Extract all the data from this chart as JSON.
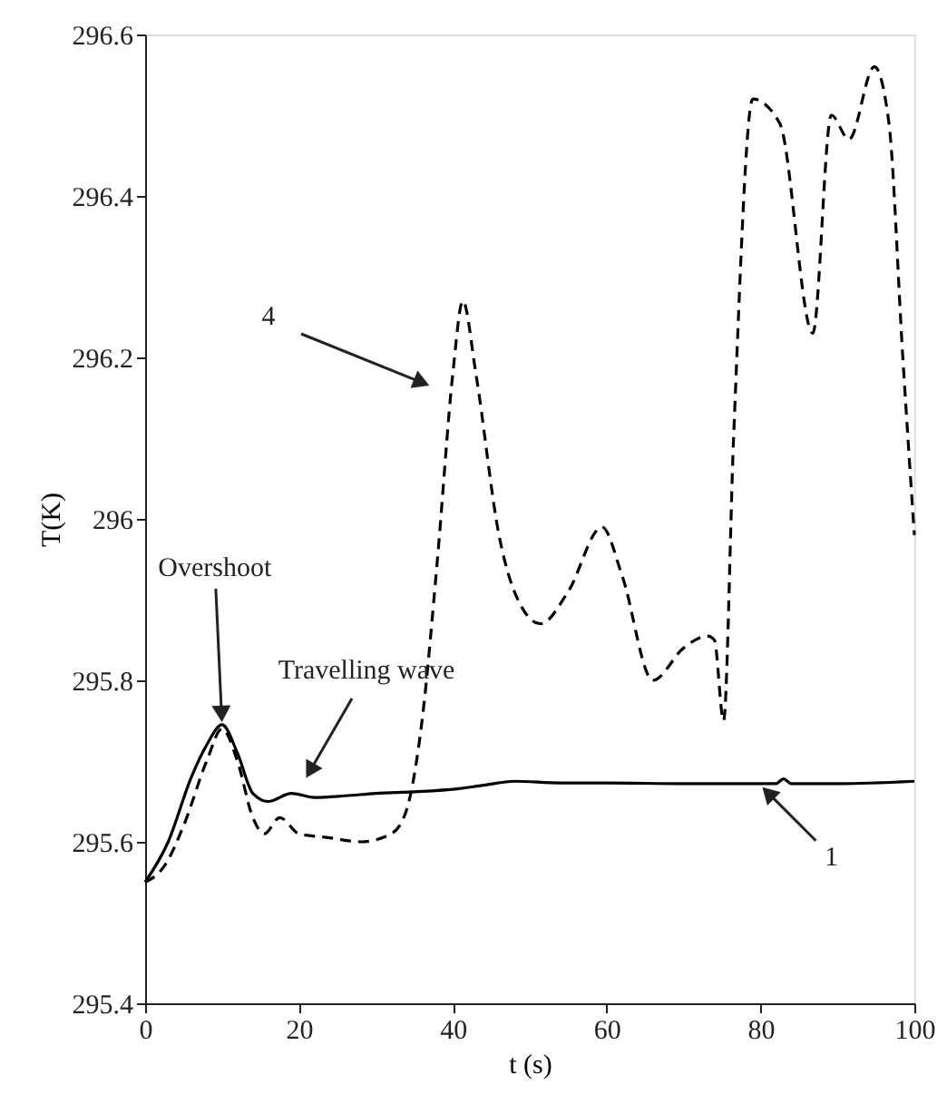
{
  "chart_data": {
    "type": "line",
    "xlabel": "t (s)",
    "ylabel": "T(K)",
    "xlim": [
      0,
      100
    ],
    "ylim": [
      295.4,
      296.6
    ],
    "xticks": [
      0,
      20,
      40,
      60,
      80,
      100
    ],
    "yticks": [
      295.4,
      295.6,
      295.8,
      296,
      296.2,
      296.4,
      296.6
    ],
    "grid": false,
    "marker": "none",
    "series": [
      {
        "color": "#000000",
        "line_style": "solid",
        "x": [
          0,
          3,
          6,
          8,
          10,
          12,
          14,
          16,
          19,
          22,
          26,
          30,
          35,
          40,
          44,
          48,
          54,
          60,
          70,
          80,
          82,
          83,
          84,
          90,
          100
        ],
        "values": [
          295.55,
          295.6,
          295.68,
          295.72,
          295.745,
          295.71,
          295.66,
          295.65,
          295.66,
          295.655,
          295.657,
          295.66,
          295.662,
          295.665,
          295.67,
          295.675,
          295.673,
          295.673,
          295.672,
          295.672,
          295.672,
          295.678,
          295.672,
          295.672,
          295.675
        ]
      },
      {
        "color": "#000000",
        "line_style": "dashed",
        "x": [
          0,
          2.5,
          5,
          8,
          10,
          12,
          14,
          15.5,
          17.5,
          20,
          24,
          28,
          32,
          34,
          36,
          38,
          40,
          41.3,
          43,
          46,
          49,
          51.4,
          55,
          59.4,
          62,
          66,
          70,
          73.1,
          74,
          75.2,
          76.5,
          79,
          82.5,
          86.8,
          89.2,
          91.5,
          94.8,
          96.7,
          98.5,
          100
        ],
        "values": [
          295.55,
          295.57,
          295.62,
          295.7,
          295.74,
          295.7,
          295.63,
          295.61,
          295.63,
          295.61,
          295.605,
          295.6,
          295.61,
          295.64,
          295.75,
          295.95,
          296.18,
          296.27,
          296.18,
          295.98,
          295.89,
          295.87,
          295.91,
          295.99,
          295.93,
          295.8,
          295.84,
          295.855,
          295.85,
          295.75,
          296.1,
          296.52,
          296.49,
          296.23,
          296.5,
          296.47,
          296.56,
          296.49,
          296.2,
          295.98
        ]
      }
    ],
    "annotations": [
      {
        "text": "Overshoot",
        "x": 10,
        "y": 295.745
      },
      "Travelling wave",
      "4",
      {
        "text": "1",
        "x": 80,
        "y": 295.67
      }
    ]
  }
}
